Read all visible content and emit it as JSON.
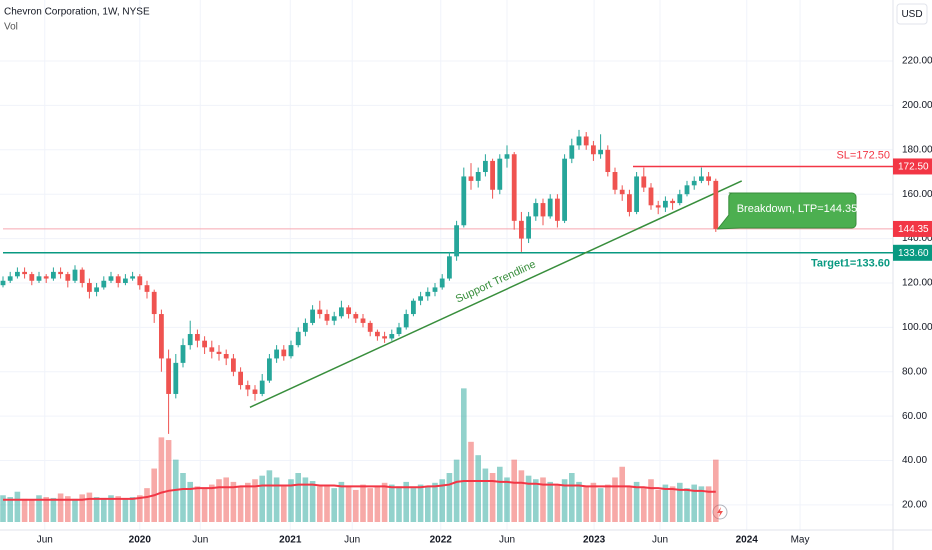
{
  "chart_data": {
    "type": "candlestick",
    "title": "Chevron Corporation, 1W, NYSE",
    "volume_label": "Vol",
    "currency": "USD",
    "up_color": "#26a69a",
    "down_color": "#ef5350",
    "grid": true,
    "xticks": [
      {
        "value": 5.8,
        "label": "Jun"
      },
      {
        "value": 19,
        "label": "2020"
      },
      {
        "value": 27.4,
        "label": "Jun"
      },
      {
        "value": 39.9,
        "label": "2021"
      },
      {
        "value": 48.5,
        "label": "Jun"
      },
      {
        "value": 60.8,
        "label": "2022"
      },
      {
        "value": 70,
        "label": "Jun"
      },
      {
        "value": 82.1,
        "label": "2023"
      },
      {
        "value": 91.25,
        "label": "Jun"
      },
      {
        "value": 103.3,
        "label": "2024"
      },
      {
        "value": 110.7,
        "label": "May"
      }
    ],
    "ylim": [
      8.7,
      247.5
    ],
    "yticks": [
      {
        "value": 20,
        "label": "20.00"
      },
      {
        "value": 40,
        "label": "40.00"
      },
      {
        "value": 60,
        "label": "60.00"
      },
      {
        "value": 80,
        "label": "80.00"
      },
      {
        "value": 100,
        "label": "100.00"
      },
      {
        "value": 120,
        "label": "120.00"
      },
      {
        "value": 140,
        "label": "140.00"
      },
      {
        "value": 160,
        "label": "160.00"
      },
      {
        "value": 180,
        "label": "180.00"
      },
      {
        "value": 200,
        "label": "200.00"
      },
      {
        "value": 220,
        "label": "220.00"
      }
    ],
    "open": [
      119,
      121,
      123,
      125,
      124,
      121,
      123,
      122,
      125,
      124,
      121,
      126,
      120,
      116,
      118,
      121,
      123,
      120,
      122,
      123,
      119,
      116,
      106,
      86,
      70,
      84,
      92,
      97,
      94,
      91,
      89,
      88,
      86,
      80,
      74,
      72,
      70,
      76,
      86,
      90,
      87,
      92,
      98,
      102,
      108,
      106,
      103,
      105,
      109,
      106,
      104,
      102,
      98,
      96,
      95,
      97,
      100,
      106,
      112,
      114,
      116,
      118,
      122,
      132,
      146,
      168,
      166,
      170,
      175,
      162,
      176,
      178,
      148,
      140,
      150,
      156,
      150,
      158,
      148,
      176,
      182,
      186,
      182,
      178,
      180,
      170,
      162,
      160,
      152,
      168,
      163,
      155,
      154,
      157,
      156,
      160,
      164,
      166,
      168,
      166
    ],
    "high": [
      123,
      125,
      127,
      127,
      125,
      125,
      124,
      127,
      127,
      125,
      128,
      127,
      122,
      120,
      123,
      125,
      124,
      124,
      125,
      124,
      121,
      117,
      108,
      90,
      88,
      95,
      103,
      99,
      96,
      94,
      92,
      90,
      88,
      82,
      76,
      74,
      79,
      88,
      92,
      92,
      94,
      100,
      104,
      110,
      112,
      108,
      107,
      112,
      110,
      107,
      106,
      103,
      99,
      98,
      99,
      102,
      108,
      113,
      116,
      118,
      120,
      124,
      134,
      148,
      172,
      174,
      172,
      178,
      176,
      178,
      182,
      179,
      152,
      152,
      158,
      158,
      160,
      160,
      178,
      185,
      189,
      188,
      184,
      187,
      182,
      172,
      164,
      162,
      170,
      172,
      165,
      157,
      159,
      158,
      162,
      166,
      168,
      172,
      170,
      167
    ],
    "low": [
      118,
      120,
      122,
      122,
      119,
      120,
      120,
      121,
      122,
      118,
      120,
      118,
      113,
      114,
      117,
      120,
      118,
      119,
      121,
      117,
      113,
      102,
      80,
      52,
      68,
      82,
      90,
      91,
      88,
      86,
      85,
      83,
      78,
      72,
      69,
      67,
      69,
      75,
      84,
      85,
      86,
      91,
      96,
      101,
      104,
      101,
      101,
      104,
      104,
      102,
      100,
      96,
      94,
      93,
      94,
      96,
      99,
      105,
      110,
      112,
      114,
      117,
      121,
      130,
      145,
      162,
      163,
      168,
      158,
      160,
      172,
      144,
      134,
      138,
      148,
      146,
      149,
      145,
      147,
      174,
      180,
      180,
      175,
      176,
      168,
      160,
      157,
      150,
      151,
      161,
      153,
      151,
      152,
      153,
      155,
      159,
      162,
      165,
      164,
      143
    ],
    "close": [
      121,
      123,
      125,
      124,
      121,
      123,
      122,
      125,
      124,
      121,
      126,
      120,
      116,
      118,
      121,
      123,
      120,
      122,
      123,
      119,
      116,
      106,
      86,
      70,
      84,
      92,
      97,
      94,
      91,
      89,
      88,
      86,
      80,
      74,
      72,
      70,
      76,
      86,
      90,
      87,
      92,
      98,
      102,
      108,
      106,
      103,
      105,
      109,
      106,
      104,
      102,
      98,
      96,
      95,
      97,
      100,
      106,
      112,
      114,
      116,
      118,
      122,
      132,
      146,
      168,
      166,
      170,
      175,
      162,
      176,
      178,
      148,
      140,
      150,
      156,
      150,
      158,
      148,
      176,
      182,
      186,
      182,
      178,
      180,
      170,
      162,
      160,
      152,
      168,
      163,
      155,
      154,
      157,
      156,
      160,
      164,
      166,
      168,
      166,
      144.35
    ],
    "vlim": [
      0,
      165
    ],
    "volume": [
      30,
      28,
      34,
      26,
      25,
      30,
      28,
      27,
      32,
      29,
      26,
      31,
      33,
      28,
      27,
      30,
      29,
      26,
      28,
      30,
      38,
      60,
      95,
      92,
      70,
      55,
      45,
      40,
      38,
      42,
      48,
      50,
      45,
      40,
      44,
      48,
      52,
      58,
      50,
      42,
      48,
      55,
      50,
      46,
      40,
      42,
      38,
      45,
      40,
      36,
      42,
      38,
      40,
      44,
      42,
      40,
      45,
      38,
      42,
      40,
      44,
      48,
      55,
      70,
      150,
      90,
      75,
      60,
      55,
      62,
      50,
      70,
      58,
      52,
      48,
      50,
      45,
      42,
      48,
      55,
      45,
      40,
      44,
      38,
      42,
      50,
      62,
      40,
      45,
      38,
      48,
      36,
      42,
      40,
      44,
      38,
      42,
      40,
      40,
      70
    ],
    "volume_ma": [
      25,
      25,
      25,
      25,
      25,
      25,
      25,
      25,
      25,
      25,
      25,
      25,
      26,
      26,
      26,
      26,
      26,
      26,
      26,
      27,
      28,
      30,
      33,
      35,
      36,
      37,
      37,
      38,
      38,
      38,
      39,
      39,
      39,
      40,
      40,
      40,
      41,
      41,
      41,
      41,
      41,
      42,
      42,
      42,
      41,
      41,
      41,
      40,
      40,
      40,
      40,
      40,
      40,
      40,
      39,
      39,
      39,
      39,
      39,
      40,
      40,
      41,
      42,
      45,
      46,
      46,
      46,
      46,
      46,
      45,
      45,
      44,
      44,
      43,
      43,
      42,
      42,
      42,
      41,
      41,
      41,
      40,
      40,
      40,
      40,
      40,
      40,
      40,
      39,
      39,
      38,
      38,
      37,
      37,
      36,
      36,
      35,
      35,
      34,
      34
    ],
    "volume_ma_color": "#f23645",
    "levels": [
      {
        "value": 172.5,
        "label": "SL=172.50",
        "badge": {
          "value": 172.5,
          "label": "172.50"
        },
        "color": "#f23645",
        "from": 87.5
      },
      {
        "value": 133.6,
        "label": "Target1=133.60",
        "badge": {
          "value": 133.6,
          "label": "133.60"
        },
        "color": "#089981",
        "from": 0
      },
      {
        "value": 144.35,
        "badge": {
          "value": 144.35,
          "label": "144.35"
        },
        "color": "#f7a8b0",
        "badge_color": "#f23645",
        "from": 0
      }
    ],
    "trendline": {
      "label": "Support Trendline",
      "x": [
        34.3,
        102.6
      ],
      "y": [
        64,
        166
      ],
      "color": "#388e3c"
    },
    "callout": {
      "text": "Breakdown, LTP=144.35",
      "color": "#4caf50"
    }
  }
}
